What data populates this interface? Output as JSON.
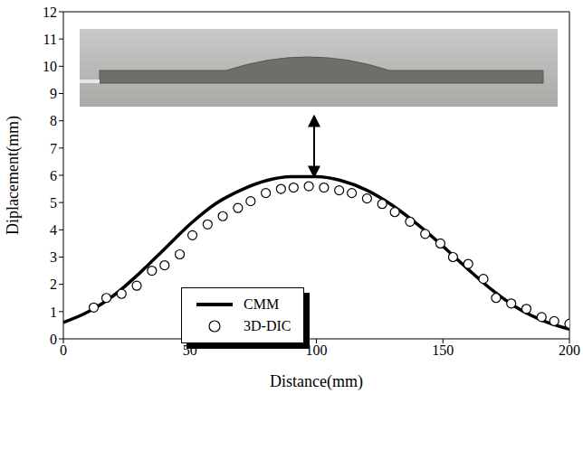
{
  "chart_data": {
    "type": "line",
    "xlabel": "Distance(mm)",
    "ylabel": "Diplacement(mm)",
    "xlim": [
      0,
      200
    ],
    "xticks": [
      0,
      50,
      100,
      150,
      200
    ],
    "ylim": [
      0,
      12
    ],
    "yticks": [
      0,
      1,
      2,
      3,
      4,
      5,
      6,
      7,
      8,
      9,
      10,
      11,
      12
    ],
    "legend": "center",
    "grid": false,
    "series": [
      {
        "name": "CMM",
        "type": "line",
        "color": "#000000",
        "line_style": "solid",
        "x": [
          0,
          10,
          20,
          30,
          40,
          50,
          60,
          70,
          80,
          90,
          100,
          110,
          120,
          130,
          140,
          150,
          160,
          170,
          180,
          190,
          200
        ],
        "values": [
          0.6,
          1.0,
          1.6,
          2.4,
          3.3,
          4.2,
          4.95,
          5.45,
          5.8,
          5.95,
          5.95,
          5.8,
          5.45,
          4.9,
          4.2,
          3.4,
          2.55,
          1.75,
          1.1,
          0.65,
          0.35
        ]
      },
      {
        "name": "3D-DIC",
        "type": "scatter",
        "color": "#000000",
        "marker": "circle",
        "x": [
          12,
          17,
          23,
          29,
          35,
          40,
          46,
          51,
          57,
          63,
          69,
          74,
          80,
          86,
          91,
          97,
          103,
          109,
          114,
          120,
          126,
          131,
          137,
          143,
          149,
          154,
          160,
          166,
          171,
          177,
          183,
          189,
          194,
          200
        ],
        "values": [
          1.15,
          1.5,
          1.65,
          1.95,
          2.5,
          2.7,
          3.1,
          3.8,
          4.2,
          4.5,
          4.8,
          5.05,
          5.35,
          5.5,
          5.55,
          5.6,
          5.55,
          5.45,
          5.35,
          5.15,
          4.95,
          4.65,
          4.3,
          3.85,
          3.5,
          3.0,
          2.75,
          2.2,
          1.5,
          1.3,
          1.1,
          0.8,
          0.65,
          0.55
        ]
      }
    ]
  }
}
